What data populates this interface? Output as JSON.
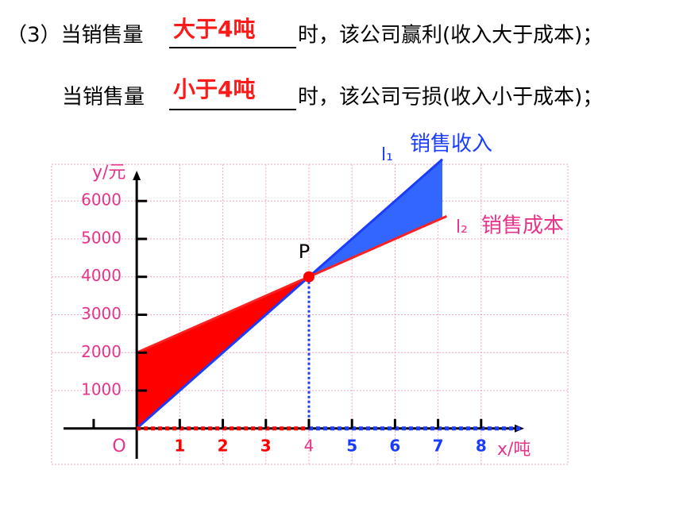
{
  "questions": [
    {
      "prefix": "（3）当销售量",
      "answer": "大于4吨",
      "suffix": "时，该公司赢利(收入大于成本)；"
    },
    {
      "prefix": "当销售量",
      "answer": "小于4吨",
      "suffix": "时，该公司亏损(收入小于成本)；"
    }
  ],
  "chart_data": {
    "type": "line",
    "x_label": "x/吨",
    "y_label": "y/元",
    "origin_label": "O",
    "xlim": [
      -1.7,
      9
    ],
    "ylim": [
      -800,
      6800
    ],
    "xticks": [
      1,
      2,
      3,
      4,
      5,
      6,
      7,
      8
    ],
    "xtick_colors": [
      "#ff0000",
      "#ff0000",
      "#ff0000",
      "#e8338a",
      "#1a3cff",
      "#1a3cff",
      "#1a3cff",
      "#1a3cff"
    ],
    "yticks": [
      1000,
      2000,
      3000,
      4000,
      5000,
      6000
    ],
    "ytick_color": "#e8338a",
    "grid": true,
    "series": [
      {
        "name": "销售收入",
        "line_label": "l₁",
        "color": "#1a3cff",
        "fill_color": "#3366ff",
        "x": [
          0,
          7.1
        ],
        "values": [
          0,
          7100
        ]
      },
      {
        "name": "销售成本",
        "line_label": "l₂",
        "color": "#ff2020",
        "fill_color": "#ff0000",
        "label_color": "#e8338a",
        "x": [
          0,
          7.2
        ],
        "values": [
          2000,
          5600
        ]
      }
    ],
    "point": {
      "label": "P",
      "x": 4,
      "y": 4000
    }
  }
}
